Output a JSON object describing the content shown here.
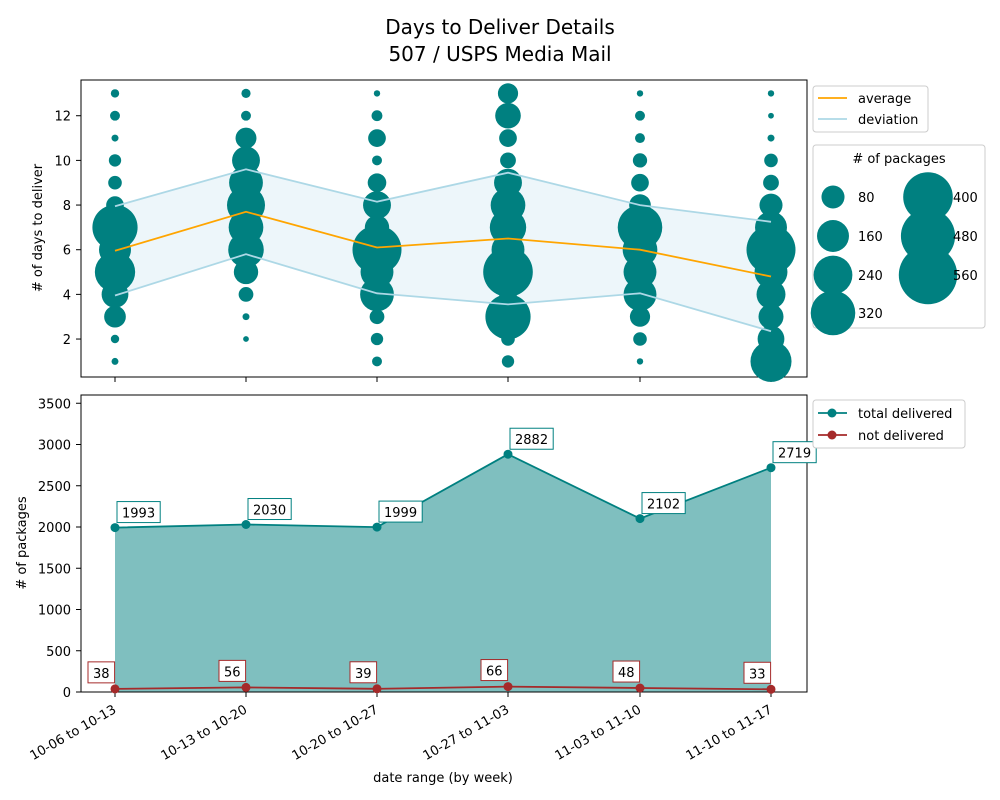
{
  "chart_data": [
    {
      "type": "scatter",
      "title_line1": "Days to Deliver Details",
      "title_line2": "507 / USPS Media Mail",
      "ylabel": "# of days to deliver",
      "ylim": [
        0.3,
        13.6
      ],
      "yticks": [
        2,
        4,
        6,
        8,
        10,
        12
      ],
      "categories": [
        "10-06 to 10-13",
        "10-13 to 10-20",
        "10-20 to 10-27",
        "10-27 to 11-03",
        "11-03 to 11-10",
        "11-10 to 11-17"
      ],
      "average": [
        5.95,
        7.7,
        6.1,
        6.5,
        6.0,
        4.8
      ],
      "deviation_upper": [
        7.95,
        9.6,
        8.15,
        9.45,
        8.0,
        7.25
      ],
      "deviation_lower": [
        3.95,
        5.8,
        4.05,
        3.55,
        4.05,
        2.35
      ],
      "average_color": "#FFA500",
      "deviation_color": "#ADD8E6",
      "bubble_color": "#008080",
      "bubbles": [
        [
          [
            1,
            5
          ],
          [
            2,
            8
          ],
          [
            3,
            70
          ],
          [
            4,
            110
          ],
          [
            5,
            260
          ],
          [
            6,
            160
          ],
          [
            7,
            330
          ],
          [
            8,
            45
          ],
          [
            9,
            25
          ],
          [
            10,
            20
          ],
          [
            11,
            5
          ],
          [
            12,
            12
          ],
          [
            13,
            8
          ]
        ],
        [
          [
            2,
            3
          ],
          [
            3,
            5
          ],
          [
            4,
            30
          ],
          [
            5,
            90
          ],
          [
            6,
            200
          ],
          [
            7,
            190
          ],
          [
            8,
            230
          ],
          [
            9,
            180
          ],
          [
            10,
            120
          ],
          [
            11,
            65
          ],
          [
            12,
            12
          ],
          [
            13,
            10
          ]
        ],
        [
          [
            1,
            12
          ],
          [
            2,
            20
          ],
          [
            3,
            30
          ],
          [
            4,
            180
          ],
          [
            5,
            170
          ],
          [
            6,
            390
          ],
          [
            7,
            90
          ],
          [
            8,
            120
          ],
          [
            9,
            50
          ],
          [
            10,
            12
          ],
          [
            11,
            45
          ],
          [
            12,
            15
          ],
          [
            13,
            4
          ]
        ],
        [
          [
            1,
            20
          ],
          [
            2,
            25
          ],
          [
            3,
            330
          ],
          [
            4,
            45
          ],
          [
            5,
            400
          ],
          [
            6,
            170
          ],
          [
            7,
            210
          ],
          [
            8,
            190
          ],
          [
            9,
            120
          ],
          [
            10,
            35
          ],
          [
            11,
            45
          ],
          [
            12,
            100
          ],
          [
            13,
            60
          ]
        ],
        [
          [
            1,
            4
          ],
          [
            2,
            25
          ],
          [
            3,
            60
          ],
          [
            4,
            170
          ],
          [
            5,
            170
          ],
          [
            6,
            190
          ],
          [
            7,
            320
          ],
          [
            8,
            70
          ],
          [
            9,
            45
          ],
          [
            10,
            28
          ],
          [
            11,
            12
          ],
          [
            12,
            12
          ],
          [
            13,
            4
          ]
        ],
        [
          [
            1,
            270
          ],
          [
            2,
            110
          ],
          [
            3,
            95
          ],
          [
            4,
            130
          ],
          [
            5,
            170
          ],
          [
            6,
            390
          ],
          [
            7,
            160
          ],
          [
            8,
            80
          ],
          [
            9,
            35
          ],
          [
            10,
            25
          ],
          [
            11,
            5
          ],
          [
            12,
            3
          ],
          [
            13,
            4
          ]
        ]
      ],
      "legend": [
        "average",
        "deviation"
      ],
      "size_legend_title": "# of packages",
      "size_legend": [
        80,
        160,
        240,
        320,
        400,
        480,
        560
      ]
    },
    {
      "type": "area",
      "xlabel": "date range (by week)",
      "ylabel": "# of packages",
      "ylim": [
        0,
        3600
      ],
      "yticks": [
        0,
        500,
        1000,
        1500,
        2000,
        2500,
        3000,
        3500
      ],
      "categories": [
        "10-06 to 10-13",
        "10-13 to 10-20",
        "10-20 to 10-27",
        "10-27 to 11-03",
        "11-03 to 11-10",
        "11-10 to 11-17"
      ],
      "series": [
        {
          "name": "total delivered",
          "color": "#008080",
          "values": [
            1993,
            2030,
            1999,
            2882,
            2102,
            2719
          ]
        },
        {
          "name": "not delivered",
          "color": "#A52A2A",
          "values": [
            38,
            56,
            39,
            66,
            48,
            33
          ]
        }
      ]
    }
  ]
}
